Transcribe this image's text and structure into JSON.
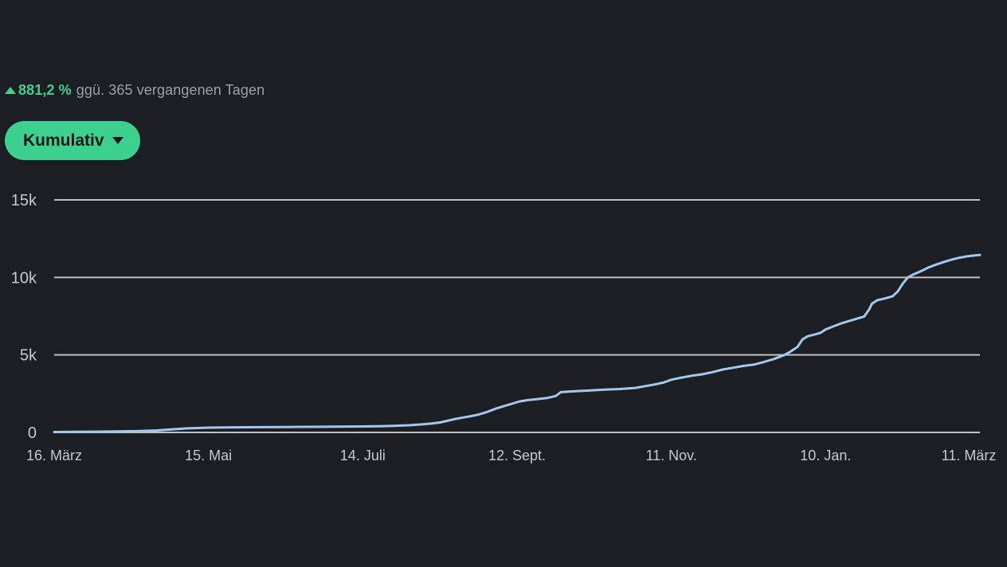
{
  "colors": {
    "background": "#1b1e23",
    "accent": "#3dd18f",
    "muted_text": "#9ba1a7",
    "axis_text": "#c6cbcf",
    "grid": "#ccd0d4",
    "line": "#a4c8ed",
    "button_text": "#12161b"
  },
  "header": {
    "direction_icon": "up-triangle",
    "change_value": "881,2 %",
    "change_suffix": "ggü. 365 vergangenen Tagen"
  },
  "controls": {
    "mode_button": {
      "label": "Kumulativ",
      "dropdown_icon": "caret-down"
    }
  },
  "chart_data": {
    "type": "line",
    "title": "",
    "legend": false,
    "grid": true,
    "xlabel": "",
    "ylabel": "",
    "xlim_days": [
      0,
      360
    ],
    "ylim": [
      0,
      15750
    ],
    "x_ticks": [
      {
        "day": 0,
        "label": "16. März"
      },
      {
        "day": 60,
        "label": "15. Mai"
      },
      {
        "day": 120,
        "label": "14. Juli"
      },
      {
        "day": 180,
        "label": "12. Sept."
      },
      {
        "day": 240,
        "label": "11. Nov."
      },
      {
        "day": 300,
        "label": "10. Jan."
      },
      {
        "day": 360,
        "label": "11. März"
      }
    ],
    "y_ticks": [
      {
        "value": 0,
        "label": "0"
      },
      {
        "value": 5000,
        "label": "5k"
      },
      {
        "value": 10000,
        "label": "10k"
      },
      {
        "value": 15000,
        "label": "15k"
      }
    ],
    "series": [
      {
        "name": "Kumulativ",
        "points": [
          [
            0,
            25
          ],
          [
            8,
            35
          ],
          [
            16,
            45
          ],
          [
            24,
            60
          ],
          [
            32,
            80
          ],
          [
            40,
            130
          ],
          [
            46,
            200
          ],
          [
            52,
            260
          ],
          [
            60,
            310
          ],
          [
            70,
            330
          ],
          [
            80,
            340
          ],
          [
            90,
            350
          ],
          [
            100,
            360
          ],
          [
            110,
            370
          ],
          [
            120,
            385
          ],
          [
            126,
            400
          ],
          [
            132,
            420
          ],
          [
            138,
            460
          ],
          [
            143,
            520
          ],
          [
            147,
            580
          ],
          [
            150,
            640
          ],
          [
            153,
            750
          ],
          [
            156,
            870
          ],
          [
            159,
            960
          ],
          [
            162,
            1050
          ],
          [
            165,
            1150
          ],
          [
            168,
            1300
          ],
          [
            172,
            1550
          ],
          [
            176,
            1750
          ],
          [
            179,
            1900
          ],
          [
            181,
            2000
          ],
          [
            184,
            2080
          ],
          [
            188,
            2150
          ],
          [
            192,
            2230
          ],
          [
            195,
            2350
          ],
          [
            197,
            2600
          ],
          [
            202,
            2650
          ],
          [
            208,
            2700
          ],
          [
            214,
            2760
          ],
          [
            220,
            2800
          ],
          [
            226,
            2870
          ],
          [
            230,
            2990
          ],
          [
            234,
            3110
          ],
          [
            237,
            3220
          ],
          [
            240,
            3400
          ],
          [
            244,
            3540
          ],
          [
            248,
            3660
          ],
          [
            252,
            3750
          ],
          [
            256,
            3890
          ],
          [
            260,
            4060
          ],
          [
            264,
            4170
          ],
          [
            268,
            4290
          ],
          [
            272,
            4370
          ],
          [
            276,
            4540
          ],
          [
            280,
            4740
          ],
          [
            284,
            5000
          ],
          [
            286,
            5180
          ],
          [
            288,
            5400
          ],
          [
            289,
            5500
          ],
          [
            291,
            6000
          ],
          [
            293,
            6200
          ],
          [
            296,
            6330
          ],
          [
            298,
            6420
          ],
          [
            300,
            6640
          ],
          [
            303,
            6840
          ],
          [
            306,
            7030
          ],
          [
            309,
            7180
          ],
          [
            312,
            7330
          ],
          [
            315,
            7480
          ],
          [
            317,
            7950
          ],
          [
            318,
            8300
          ],
          [
            320,
            8520
          ],
          [
            323,
            8640
          ],
          [
            326,
            8780
          ],
          [
            328,
            9080
          ],
          [
            330,
            9600
          ],
          [
            332,
            10000
          ],
          [
            334,
            10180
          ],
          [
            337,
            10400
          ],
          [
            340,
            10640
          ],
          [
            343,
            10830
          ],
          [
            346,
            11000
          ],
          [
            349,
            11150
          ],
          [
            352,
            11270
          ],
          [
            355,
            11360
          ],
          [
            358,
            11420
          ],
          [
            360,
            11450
          ]
        ]
      }
    ]
  }
}
